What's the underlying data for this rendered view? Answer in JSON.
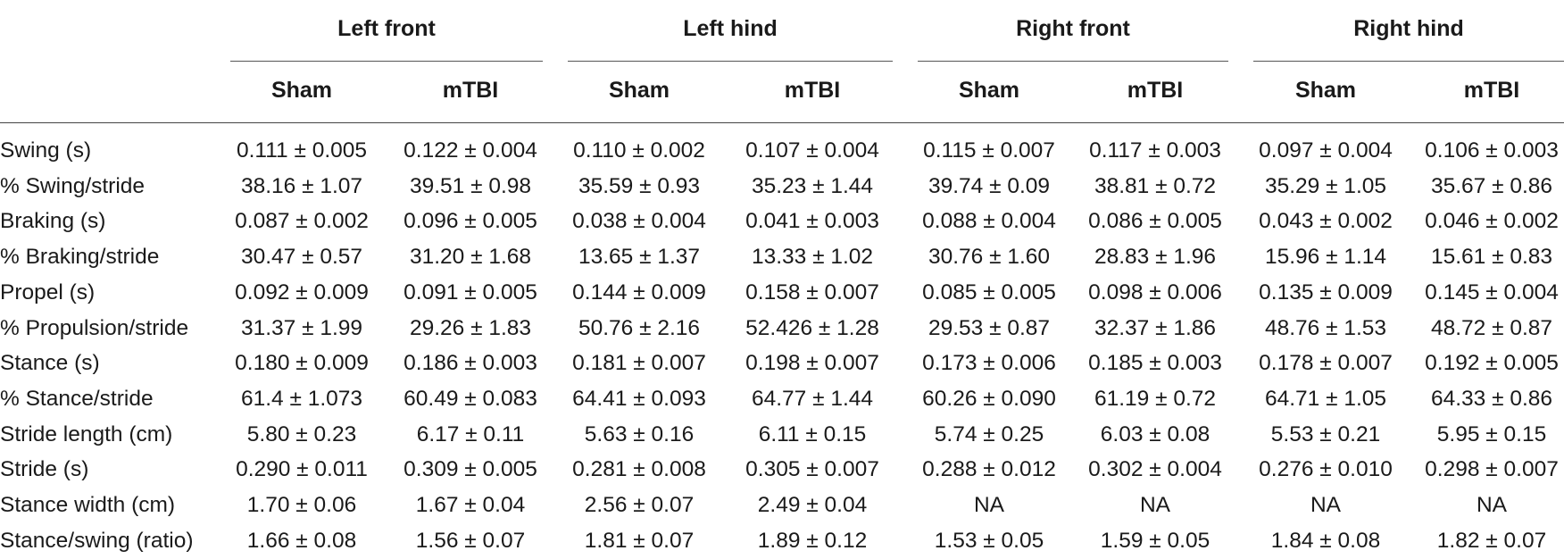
{
  "table": {
    "groups": [
      "Left front",
      "Left hind",
      "Right front",
      "Right hind"
    ],
    "subheaders": [
      "Sham",
      "mTBI",
      "Sham",
      "mTBI",
      "Sham",
      "mTBI",
      "Sham",
      "mTBI"
    ],
    "rows": [
      {
        "label": "Swing (s)",
        "cells": [
          "0.111 ± 0.005",
          "0.122 ± 0.004",
          "0.110 ± 0.002",
          "0.107 ± 0.004",
          "0.115 ± 0.007",
          "0.117 ± 0.003",
          "0.097 ± 0.004",
          "0.106 ± 0.003"
        ]
      },
      {
        "label": "% Swing/stride",
        "cells": [
          "38.16 ± 1.07",
          "39.51 ± 0.98",
          "35.59 ± 0.93",
          "35.23 ± 1.44",
          "39.74 ± 0.09",
          "38.81 ± 0.72",
          "35.29 ± 1.05",
          "35.67 ± 0.86"
        ]
      },
      {
        "label": "Braking (s)",
        "cells": [
          "0.087 ± 0.002",
          "0.096 ± 0.005",
          "0.038 ± 0.004",
          "0.041 ± 0.003",
          "0.088 ± 0.004",
          "0.086 ± 0.005",
          "0.043 ± 0.002",
          "0.046 ± 0.002"
        ]
      },
      {
        "label": "% Braking/stride",
        "cells": [
          "30.47 ± 0.57",
          "31.20 ± 1.68",
          "13.65 ± 1.37",
          "13.33 ± 1.02",
          "30.76 ± 1.60",
          "28.83 ± 1.96",
          "15.96 ± 1.14",
          "15.61 ± 0.83"
        ]
      },
      {
        "label": "Propel (s)",
        "cells": [
          "0.092 ± 0.009",
          "0.091 ± 0.005",
          "0.144 ± 0.009",
          "0.158 ± 0.007",
          "0.085 ± 0.005",
          "0.098 ± 0.006",
          "0.135 ± 0.009",
          "0.145 ± 0.004"
        ]
      },
      {
        "label": "% Propulsion/stride",
        "cells": [
          "31.37 ± 1.99",
          "29.26 ± 1.83",
          "50.76 ± 2.16",
          "52.426 ± 1.28",
          "29.53 ± 0.87",
          "32.37 ± 1.86",
          "48.76 ± 1.53",
          "48.72 ± 0.87"
        ]
      },
      {
        "label": "Stance (s)",
        "cells": [
          "0.180 ± 0.009",
          "0.186 ± 0.003",
          "0.181 ± 0.007",
          "0.198 ± 0.007",
          "0.173 ± 0.006",
          "0.185 ± 0.003",
          "0.178 ± 0.007",
          "0.192 ± 0.005"
        ]
      },
      {
        "label": "% Stance/stride",
        "cells": [
          "61.4 ± 1.073",
          "60.49 ± 0.083",
          "64.41 ± 0.093",
          "64.77 ± 1.44",
          "60.26 ± 0.090",
          "61.19 ± 0.72",
          "64.71 ± 1.05",
          "64.33 ± 0.86"
        ]
      },
      {
        "label": "Stride length (cm)",
        "cells": [
          "5.80 ± 0.23",
          "6.17 ± 0.11",
          "5.63 ± 0.16",
          "6.11 ± 0.15",
          "5.74 ± 0.25",
          "6.03 ± 0.08",
          "5.53 ± 0.21",
          "5.95 ± 0.15"
        ]
      },
      {
        "label": "Stride (s)",
        "cells": [
          "0.290 ± 0.011",
          "0.309 ± 0.005",
          "0.281 ± 0.008",
          "0.305 ± 0.007",
          "0.288 ± 0.012",
          "0.302 ± 0.004",
          "0.276 ± 0.010",
          "0.298 ± 0.007"
        ]
      },
      {
        "label": "Stance width (cm)",
        "cells": [
          "1.70 ± 0.06",
          "1.67 ± 0.04",
          "2.56 ± 0.07",
          "2.49 ± 0.04",
          "NA",
          "NA",
          "NA",
          "NA"
        ]
      },
      {
        "label": "Stance/swing (ratio)",
        "cells": [
          "1.66 ± 0.08",
          "1.56 ± 0.07",
          "1.81 ± 0.07",
          "1.89 ± 0.12",
          "1.53 ± 0.05",
          "1.59 ± 0.05",
          "1.84 ± 0.08",
          "1.82 ± 0.07"
        ]
      }
    ]
  }
}
